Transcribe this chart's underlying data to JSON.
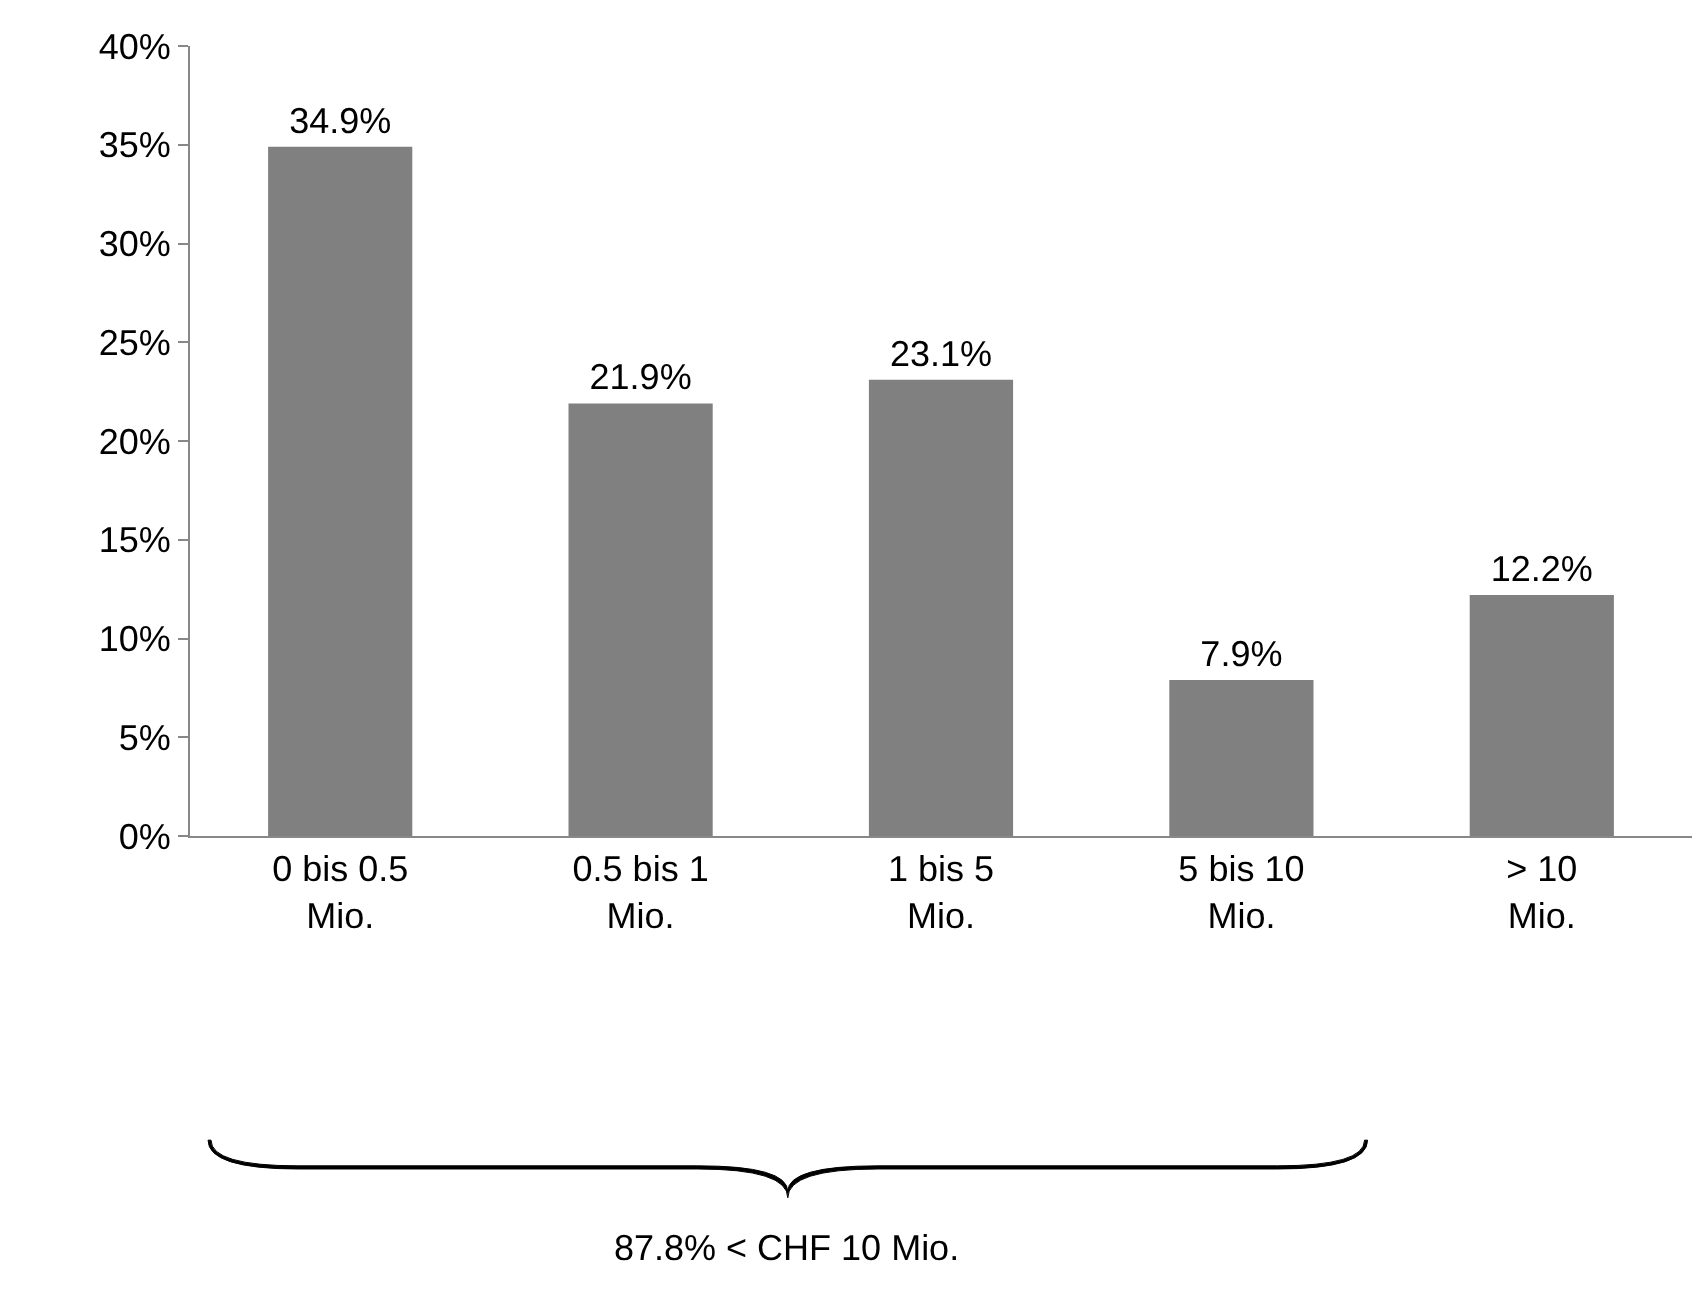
{
  "chart_data": {
    "type": "bar",
    "categories": [
      "0 bis 0.5 Mio.",
      "0.5 bis 1 Mio.",
      "1 bis 5 Mio.",
      "5 bis 10 Mio.",
      "> 10 Mio."
    ],
    "values": [
      34.9,
      21.9,
      23.1,
      7.9,
      12.2
    ],
    "value_labels": [
      "34.9%",
      "21.9%",
      "23.1%",
      "7.9%",
      "12.2%"
    ],
    "color": "#808080",
    "ylim": [
      0,
      40
    ],
    "yticks": [
      {
        "value": 0,
        "label": "0%"
      },
      {
        "value": 5,
        "label": "5%"
      },
      {
        "value": 10,
        "label": "10%"
      },
      {
        "value": 15,
        "label": "15%"
      },
      {
        "value": 20,
        "label": "20%"
      },
      {
        "value": 25,
        "label": "25%"
      },
      {
        "value": 30,
        "label": "30%"
      },
      {
        "value": 35,
        "label": "35%"
      },
      {
        "value": 40,
        "label": "40%"
      }
    ],
    "legend": false,
    "annotations": [
      "87.8% < CHF 10 Mio."
    ]
  }
}
